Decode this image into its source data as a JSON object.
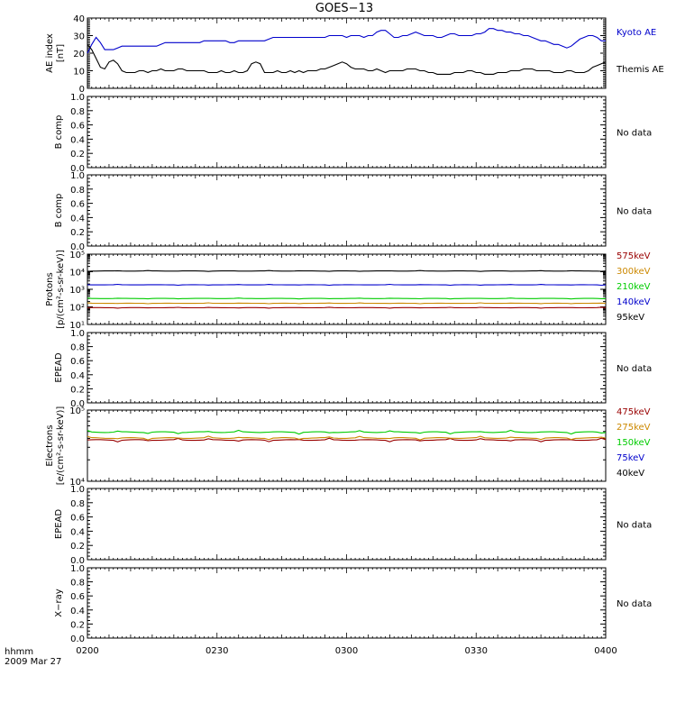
{
  "title": "GOES−13",
  "footer": {
    "time_label": "hhmm",
    "date_label": "2009 Mar 27"
  },
  "x_ticks": [
    "0200",
    "0230",
    "0300",
    "0330",
    "0400"
  ],
  "chart_data": [
    {
      "type": "line",
      "ylabel": [
        "AE index",
        "[nT]"
      ],
      "ylim": [
        0,
        40
      ],
      "yticks": [
        "0",
        "10",
        "20",
        "30",
        "40"
      ],
      "x": [
        0,
        1,
        2,
        3,
        4,
        5,
        6,
        7,
        8,
        9,
        10,
        11,
        12,
        13,
        14,
        15,
        16,
        17,
        18,
        19,
        20,
        21,
        22,
        23,
        24,
        25,
        26,
        27,
        28,
        29,
        30,
        31,
        32,
        33,
        34,
        35,
        36,
        37,
        38,
        39,
        40,
        41,
        42,
        43,
        44,
        45,
        46,
        47,
        48,
        49,
        50,
        51,
        52,
        53,
        54,
        55,
        56,
        57,
        58,
        59,
        60,
        61,
        62,
        63,
        64,
        65,
        66,
        67,
        68,
        69,
        70,
        71,
        72,
        73,
        74,
        75,
        76,
        77,
        78,
        79,
        80,
        81,
        82,
        83,
        84,
        85,
        86,
        87,
        88,
        89,
        90,
        91,
        92,
        93,
        94,
        95,
        96,
        97,
        98,
        99,
        100,
        101,
        102,
        103,
        104,
        105,
        106,
        107,
        108,
        109,
        110,
        111,
        112,
        113,
        114,
        115,
        116,
        117,
        118,
        119,
        120
      ],
      "series": [
        {
          "name": "Kyoto AE",
          "color": "#0000cc",
          "values": [
            20,
            25,
            29,
            26,
            22,
            22,
            22,
            23,
            24,
            24,
            24,
            24,
            24,
            24,
            24,
            24,
            24,
            25,
            26,
            26,
            26,
            26,
            26,
            26,
            26,
            26,
            26,
            27,
            27,
            27,
            27,
            27,
            27,
            26,
            26,
            27,
            27,
            27,
            27,
            27,
            27,
            27,
            28,
            29,
            29,
            29,
            29,
            29,
            29,
            29,
            29,
            29,
            29,
            29,
            29,
            29,
            30,
            30,
            30,
            30,
            29,
            30,
            30,
            30,
            29,
            30,
            30,
            32,
            33,
            33,
            31,
            29,
            29,
            30,
            30,
            31,
            32,
            31,
            30,
            30,
            30,
            29,
            29,
            30,
            31,
            31,
            30,
            30,
            30,
            30,
            31,
            31,
            32,
            34,
            34,
            33,
            33,
            32,
            32,
            31,
            31,
            30,
            30,
            29,
            28,
            27,
            27,
            26,
            25,
            25,
            24,
            23,
            24,
            26,
            28,
            29,
            30,
            30,
            29,
            27,
            27
          ]
        },
        {
          "name": "Themis AE",
          "color": "#000000",
          "values": [
            25,
            22,
            17,
            12,
            11,
            15,
            16,
            14,
            10,
            9,
            9,
            9,
            10,
            10,
            9,
            10,
            10,
            11,
            10,
            10,
            10,
            11,
            11,
            10,
            10,
            10,
            10,
            10,
            9,
            9,
            9,
            10,
            9,
            9,
            10,
            9,
            9,
            10,
            14,
            15,
            14,
            9,
            9,
            9,
            10,
            9,
            9,
            10,
            9,
            10,
            9,
            10,
            10,
            10,
            11,
            11,
            12,
            13,
            14,
            15,
            14,
            12,
            11,
            11,
            11,
            10,
            10,
            11,
            10,
            9,
            10,
            10,
            10,
            10,
            11,
            11,
            11,
            10,
            10,
            9,
            9,
            8,
            8,
            8,
            8,
            9,
            9,
            9,
            10,
            10,
            9,
            9,
            8,
            8,
            8,
            9,
            9,
            9,
            10,
            10,
            10,
            11,
            11,
            11,
            10,
            10,
            10,
            10,
            9,
            9,
            9,
            10,
            10,
            9,
            9,
            9,
            10,
            12,
            13,
            14,
            15
          ]
        }
      ]
    },
    {
      "type": "line",
      "ylabel": [
        "B comp"
      ],
      "ylim": [
        0,
        1
      ],
      "yticks": [
        "0.0",
        "0.2",
        "0.4",
        "0.6",
        "0.8",
        "1.0"
      ],
      "note": "No data",
      "series": []
    },
    {
      "type": "line",
      "ylabel": [
        "B comp"
      ],
      "ylim": [
        0,
        1
      ],
      "yticks": [
        "0.0",
        "0.2",
        "0.4",
        "0.6",
        "0.8",
        "1.0"
      ],
      "note": "No data",
      "series": []
    },
    {
      "type": "line",
      "scale": "log",
      "ylabel": [
        "Protons",
        "[p/(cm²-s-sr-keV)]"
      ],
      "ylim": [
        10,
        100000
      ],
      "yticks": [
        "10¹",
        "10²",
        "10³",
        "10⁴",
        "10⁵"
      ],
      "series": [
        {
          "name": "575keV",
          "color": "#990000",
          "level": 90
        },
        {
          "name": "300keV",
          "color": "#cc8800",
          "level": 160
        },
        {
          "name": "210keV",
          "color": "#00cc00",
          "level": 300
        },
        {
          "name": "140keV",
          "color": "#0000cc",
          "level": 1800
        },
        {
          "name": "95keV",
          "color": "#000000",
          "level": 11000
        }
      ]
    },
    {
      "type": "line",
      "ylabel": [
        "EPEAD"
      ],
      "ylim": [
        0,
        1
      ],
      "yticks": [
        "0.0",
        "0.2",
        "0.4",
        "0.6",
        "0.8",
        "1.0"
      ],
      "note": "No data",
      "series": []
    },
    {
      "type": "line",
      "scale": "log",
      "ylabel": [
        "Electrons",
        "[e/(cm²-s-sr-keV)]"
      ],
      "ylim": [
        10000,
        100000
      ],
      "yticks": [
        "10⁴",
        "10⁵"
      ],
      "series": [
        {
          "name": "475keV",
          "color": "#990000",
          "level": 38000
        },
        {
          "name": "275keV",
          "color": "#cc8800",
          "level": 40500
        },
        {
          "name": "150keV",
          "color": "#00cc00",
          "level": 49000
        },
        {
          "name": "75keV",
          "color": "#0000cc"
        },
        {
          "name": "40keV",
          "color": "#000000"
        }
      ]
    },
    {
      "type": "line",
      "ylabel": [
        "EPEAD"
      ],
      "ylim": [
        0,
        1
      ],
      "yticks": [
        "0.0",
        "0.2",
        "0.4",
        "0.6",
        "0.8",
        "1.0"
      ],
      "note": "No data",
      "series": []
    },
    {
      "type": "line",
      "ylabel": [
        "X−ray"
      ],
      "ylim": [
        0,
        1
      ],
      "yticks": [
        "0.0",
        "0.2",
        "0.4",
        "0.6",
        "0.8",
        "1.0"
      ],
      "note": "No data",
      "series": []
    }
  ]
}
